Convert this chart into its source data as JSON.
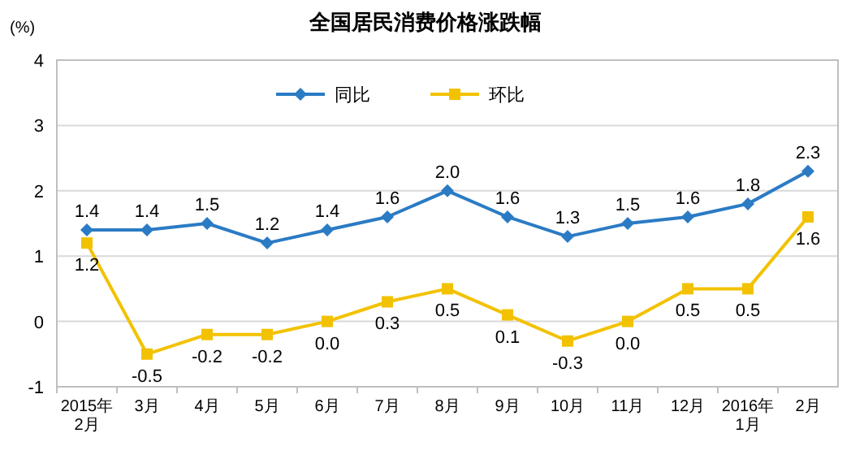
{
  "chart_data": {
    "type": "line",
    "title": "全国居民消费价格涨跌幅",
    "ylabel": "(%)",
    "categories": [
      "2015年\n2月",
      "3月",
      "4月",
      "5月",
      "6月",
      "7月",
      "8月",
      "9月",
      "10月",
      "11月",
      "12月",
      "2016年\n1月",
      "2月"
    ],
    "series": [
      {
        "name": "同比",
        "color": "#2b7bc4",
        "marker": "diamond",
        "values": [
          1.4,
          1.4,
          1.5,
          1.2,
          1.4,
          1.6,
          2.0,
          1.6,
          1.3,
          1.5,
          1.6,
          1.8,
          2.3
        ],
        "value_labels": [
          "1.4",
          "1.4",
          "1.5",
          "1.2",
          "1.4",
          "1.6",
          "2.0",
          "1.6",
          "1.3",
          "1.5",
          "1.6",
          "1.8",
          "2.3"
        ]
      },
      {
        "name": "环比",
        "color": "#f2c200",
        "marker": "square",
        "values": [
          1.2,
          -0.5,
          -0.2,
          -0.2,
          0.0,
          0.3,
          0.5,
          0.1,
          -0.3,
          0.0,
          0.5,
          0.5,
          1.6
        ],
        "value_labels": [
          "1.2",
          "-0.5",
          "-0.2",
          "-0.2",
          "0.0",
          "0.3",
          "0.5",
          "0.1",
          "-0.3",
          "0.0",
          "0.5",
          "0.5",
          "1.6"
        ]
      }
    ],
    "ylim": [
      -1,
      4
    ],
    "yticks": [
      -1,
      0,
      1,
      2,
      3,
      4
    ],
    "grid": "y",
    "legend": "top"
  }
}
